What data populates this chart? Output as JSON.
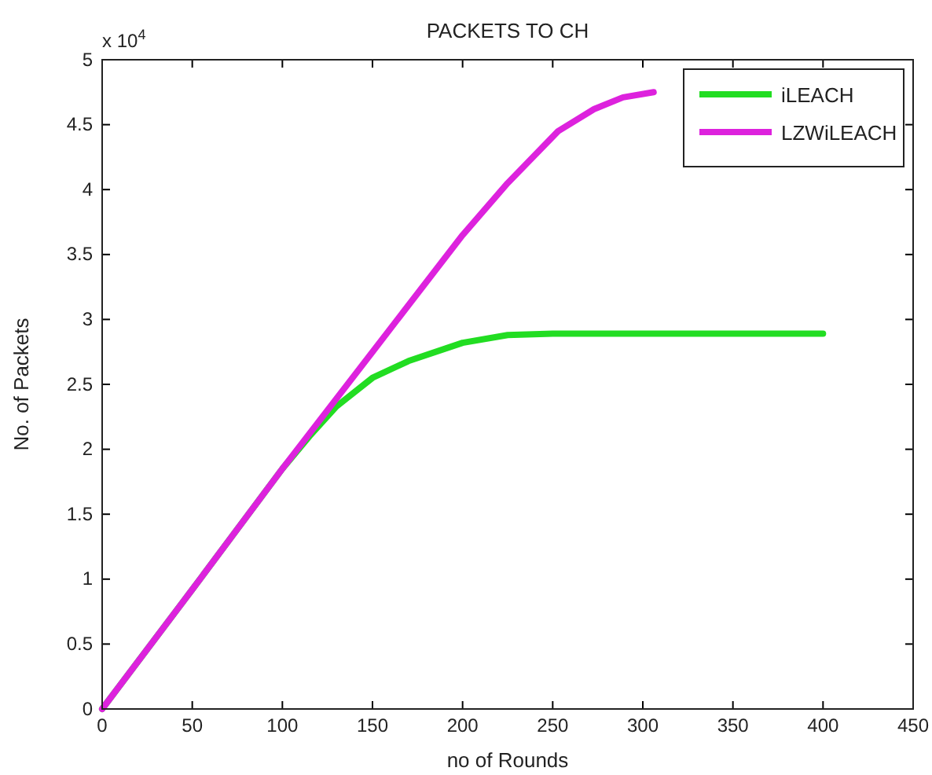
{
  "chart_data": {
    "type": "line",
    "title": "PACKETS TO CH",
    "xlabel": "no of Rounds",
    "ylabel": "No. of Packets",
    "annotations": [
      "x 10$^{4}$"
    ],
    "xlim": [
      0,
      450
    ],
    "xticks": [
      0,
      50,
      100,
      150,
      200,
      250,
      300,
      350,
      400,
      450
    ],
    "ylim": [
      0,
      5
    ],
    "yticks": [
      0,
      0.5,
      1,
      1.5,
      2,
      2.5,
      3,
      3.5,
      4,
      4.5,
      5
    ],
    "grid": false,
    "legend": "top right",
    "line_style": "solid",
    "marker": "none",
    "series": [
      {
        "name": "iLEACH",
        "color": "#22dd22",
        "x": [
          0,
          50,
          100,
          115,
          130,
          150,
          170,
          200,
          225,
          250,
          300,
          400
        ],
        "values": [
          0,
          0.92,
          1.85,
          2.1,
          2.33,
          2.55,
          2.68,
          2.82,
          2.88,
          2.89,
          2.89,
          2.89
        ]
      },
      {
        "name": "LZWiLEACH",
        "color": "#dd22dd",
        "x": [
          0,
          50,
          100,
          150,
          200,
          225,
          253,
          273,
          289,
          306
        ],
        "values": [
          0,
          0.92,
          1.85,
          2.75,
          3.65,
          4.05,
          4.45,
          4.62,
          4.71,
          4.75
        ]
      }
    ]
  }
}
